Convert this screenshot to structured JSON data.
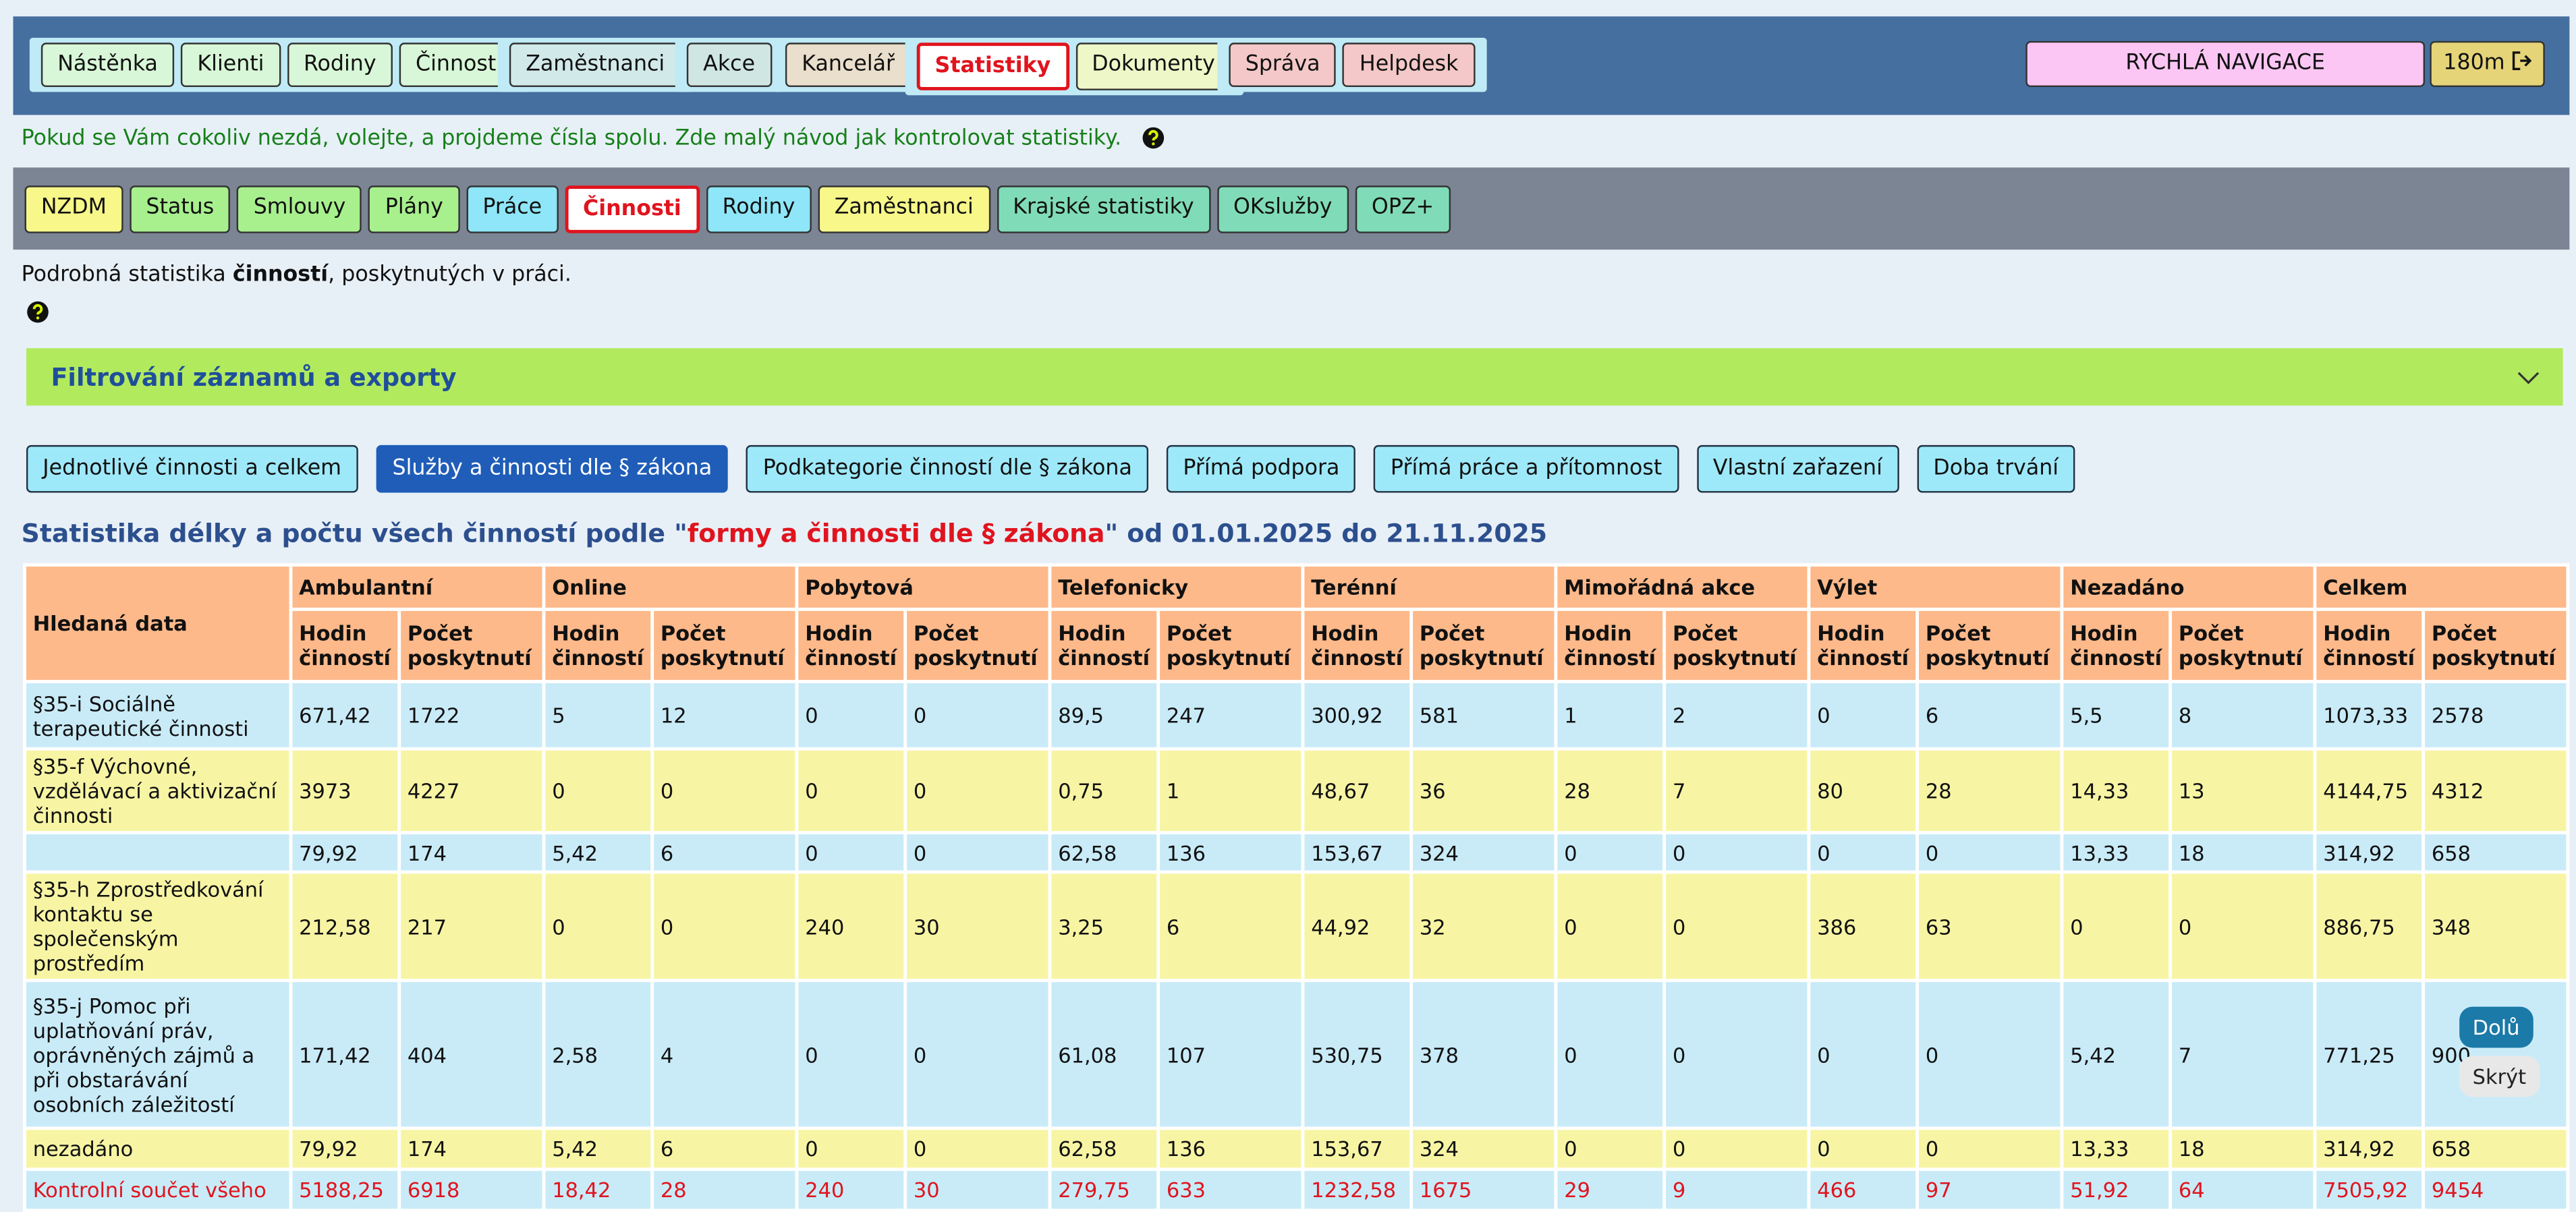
{
  "top_nav": {
    "groups": [
      [
        "Nástěnka",
        "Klienti",
        "Rodiny",
        "Činnosti"
      ],
      [
        "Zaměstnanci"
      ],
      [
        "Akce"
      ],
      [
        "Kancelář"
      ],
      [
        "Statistiky",
        "Dokumenty"
      ],
      [
        "Správa",
        "Helpdesk"
      ]
    ],
    "quick_nav": "RYCHLÁ NAVIGACE",
    "timer": "180m"
  },
  "notice": "Pokud se Vám cokoliv nezdá, volejte, a projdeme čísla spolu. Zde malý návod jak kontrolovat statistiky.",
  "sub_nav": [
    "NZDM",
    "Status",
    "Smlouvy",
    "Plány",
    "Práce",
    "Činnosti",
    "Rodiny",
    "Zaměstnanci",
    "Krajské statistiky",
    "OKslužby",
    "OPZ+"
  ],
  "description": [
    "Podrobná statistika ",
    "činností",
    ", poskytnutých v práci."
  ],
  "filter_panel": "Filtrování záznamů a exporty",
  "tabs": [
    "Jednotlivé činnosti a celkem",
    "Služby a činnosti dle § zákona",
    "Podkategorie činností dle § zákona",
    "Přímá podpora",
    "Přímá práce a přítomnost",
    "Vlastní zařazení",
    "Doba trvání"
  ],
  "heading": [
    "Statistika délky a počtu všech činností podle \"",
    "formy a činnosti dle § zákona",
    "\" od 01.01.2025 do 21.11.2025"
  ],
  "table": {
    "row_header": "Hledaná data",
    "groups": [
      "Ambulantní",
      "Online",
      "Pobytová",
      "Telefonicky",
      "Terénní",
      "Mimořádná akce",
      "Výlet",
      "Nezadáno",
      "Celkem"
    ],
    "subheaders": [
      "Hodin činností",
      "Počet poskytnutí"
    ],
    "rows": [
      {
        "label": "§35-i Sociálně terapeutické činnosti",
        "cells": [
          "671,42",
          "1722",
          "5",
          "12",
          "0",
          "0",
          "89,5",
          "247",
          "300,92",
          "581",
          "1",
          "2",
          "0",
          "6",
          "5,5",
          "8",
          "1073,33",
          "2578"
        ]
      },
      {
        "label": "§35-f Výchovné, vzdělávací a aktivizační činnosti",
        "cells": [
          "3973",
          "4227",
          "0",
          "0",
          "0",
          "0",
          "0,75",
          "1",
          "48,67",
          "36",
          "28",
          "7",
          "80",
          "28",
          "14,33",
          "13",
          "4144,75",
          "4312"
        ]
      },
      {
        "label": null,
        "cells": [
          "79,92",
          "174",
          "5,42",
          "6",
          "0",
          "0",
          "62,58",
          "136",
          "153,67",
          "324",
          "0",
          "0",
          "0",
          "0",
          "13,33",
          "18",
          "314,92",
          "658"
        ]
      },
      {
        "label": "§35-h Zprostředkování kontaktu se společenským prostředím",
        "cells": [
          "212,58",
          "217",
          "0",
          "0",
          "240",
          "30",
          "3,25",
          "6",
          "44,92",
          "32",
          "0",
          "0",
          "386",
          "63",
          "0",
          "0",
          "886,75",
          "348"
        ]
      },
      {
        "label": "§35-j Pomoc při uplatňování práv, oprávněných zájmů a při obstarávání osobních záležitostí",
        "cells": [
          "171,42",
          "404",
          "2,58",
          "4",
          "0",
          "0",
          "61,08",
          "107",
          "530,75",
          "378",
          "0",
          "0",
          "0",
          "0",
          "5,42",
          "7",
          "771,25",
          "900"
        ]
      },
      {
        "label": "nezadáno",
        "cells": [
          "79,92",
          "174",
          "5,42",
          "6",
          "0",
          "0",
          "62,58",
          "136",
          "153,67",
          "324",
          "0",
          "0",
          "0",
          "0",
          "13,33",
          "18",
          "314,92",
          "658"
        ]
      }
    ],
    "total": {
      "label": "Kontrolní součet všeho",
      "cells": [
        "5188,25",
        "6918",
        "18,42",
        "28",
        "240",
        "30",
        "279,75",
        "633",
        "1232,58",
        "1675",
        "29",
        "9",
        "466",
        "97",
        "51,92",
        "64",
        "7505,92",
        "9454"
      ]
    }
  },
  "float_buttons": [
    "Dolů",
    "Skrýt"
  ]
}
